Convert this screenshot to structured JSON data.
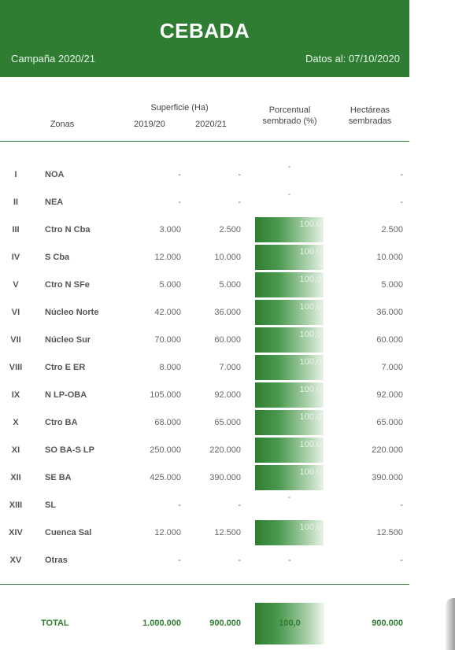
{
  "header": {
    "title": "CEBADA",
    "campaign": "Campaña 2020/21",
    "data_date": "Datos al: 07/10/2020"
  },
  "columns": {
    "zonas": "Zonas",
    "superficie": "Superficie (Ha)",
    "y2019": "2019/20",
    "y2020": "2020/21",
    "porcentual_1": "Porcentual",
    "porcentual_2": "sembrado (%)",
    "hectareas_1": "Hectáreas",
    "hectareas_2": "sembradas"
  },
  "rows": [
    {
      "num": "I",
      "zone": "NOA",
      "s19": "-",
      "s20": "-",
      "pct": "-",
      "bar": false,
      "ha": "-"
    },
    {
      "num": "II",
      "zone": "NEA",
      "s19": "-",
      "s20": "-",
      "pct": "-",
      "bar": false,
      "ha": "-"
    },
    {
      "num": "III",
      "zone": "Ctro N Cba",
      "s19": "3.000",
      "s20": "2.500",
      "pct": "100,0",
      "bar": true,
      "ha": "2.500"
    },
    {
      "num": "IV",
      "zone": "S Cba",
      "s19": "12.000",
      "s20": "10.000",
      "pct": "100,0",
      "bar": true,
      "ha": "10.000"
    },
    {
      "num": "V",
      "zone": "Ctro N SFe",
      "s19": "5.000",
      "s20": "5.000",
      "pct": "100,0",
      "bar": true,
      "ha": "5.000"
    },
    {
      "num": "VI",
      "zone": "Núcleo Norte",
      "s19": "42.000",
      "s20": "36.000",
      "pct": "100,0",
      "bar": true,
      "ha": "36.000"
    },
    {
      "num": "VII",
      "zone": "Núcleo Sur",
      "s19": "70.000",
      "s20": "60.000",
      "pct": "100,0",
      "bar": true,
      "ha": "60.000"
    },
    {
      "num": "VIII",
      "zone": "Ctro E ER",
      "s19": "8.000",
      "s20": "7.000",
      "pct": "100,0",
      "bar": true,
      "ha": "7.000"
    },
    {
      "num": "IX",
      "zone": "N LP-OBA",
      "s19": "105.000",
      "s20": "92.000",
      "pct": "100,0",
      "bar": true,
      "ha": "92.000"
    },
    {
      "num": "X",
      "zone": "Ctro BA",
      "s19": "68.000",
      "s20": "65.000",
      "pct": "100,0",
      "bar": true,
      "ha": "65.000"
    },
    {
      "num": "XI",
      "zone": "SO BA-S LP",
      "s19": "250.000",
      "s20": "220.000",
      "pct": "100,0",
      "bar": true,
      "ha": "220.000"
    },
    {
      "num": "XII",
      "zone": "SE BA",
      "s19": "425.000",
      "s20": "390.000",
      "pct": "100,0",
      "bar": true,
      "ha": "390.000"
    },
    {
      "num": "XIII",
      "zone": "SL",
      "s19": "-",
      "s20": "-",
      "pct": "-",
      "bar": false,
      "ha": "-"
    },
    {
      "num": "XIV",
      "zone": "Cuenca Sal",
      "s19": "12.000",
      "s20": "12.500",
      "pct": "100,0",
      "bar": true,
      "ha": "12.500"
    },
    {
      "num": "XV",
      "zone": "Otras",
      "s19": "-",
      "s20": "-",
      "pct": "-",
      "bar": false,
      "ha": "-"
    }
  ],
  "total": {
    "label": "TOTAL",
    "s19": "1.000.000",
    "s20": "900.000",
    "pct": "100,0",
    "ha": "900.000"
  },
  "colors": {
    "header_bg": "#2e7d32",
    "accent": "#2e7d32"
  }
}
